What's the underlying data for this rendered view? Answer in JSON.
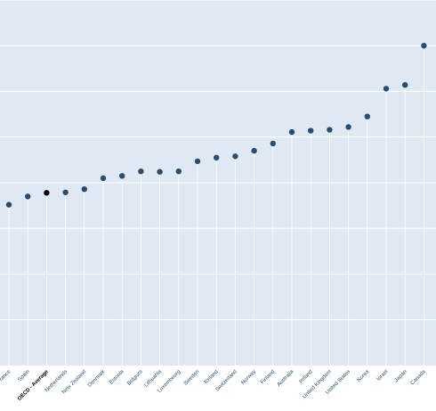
{
  "chart_data": {
    "type": "scatter",
    "title": "",
    "xlabel": "",
    "ylabel": "",
    "categories": [
      "France",
      "Spain",
      "OECD - Average",
      "Netherlands",
      "New Zealand",
      "Denmark",
      "Estonia",
      "Belgium",
      "Lithuania",
      "Luxembourg",
      "Sweden",
      "Iceland",
      "Switzerland",
      "Norway",
      "Finland",
      "Australia",
      "Ireland",
      "United Kingdom",
      "United States",
      "Korea",
      "Israel",
      "Japan",
      "Canada"
    ],
    "values": [
      35.2,
      37.0,
      37.8,
      37.9,
      38.6,
      41.0,
      41.5,
      42.5,
      42.4,
      42.5,
      44.7,
      45.5,
      45.8,
      47.0,
      48.6,
      51.1,
      51.4,
      51.6,
      52.2,
      54.5,
      60.6,
      61.4,
      70.0
    ],
    "highlight": "OECD - Average",
    "ylim": [
      0,
      80
    ],
    "grid": true,
    "legend": "none",
    "colors": {
      "background": "#dee9f3",
      "gridline": "#ffffff",
      "stem": "#ffffff",
      "point": "#2a4d6e",
      "highlight_point": "#000000",
      "label": "#2a4d6e",
      "highlight_label": "#000000"
    }
  }
}
